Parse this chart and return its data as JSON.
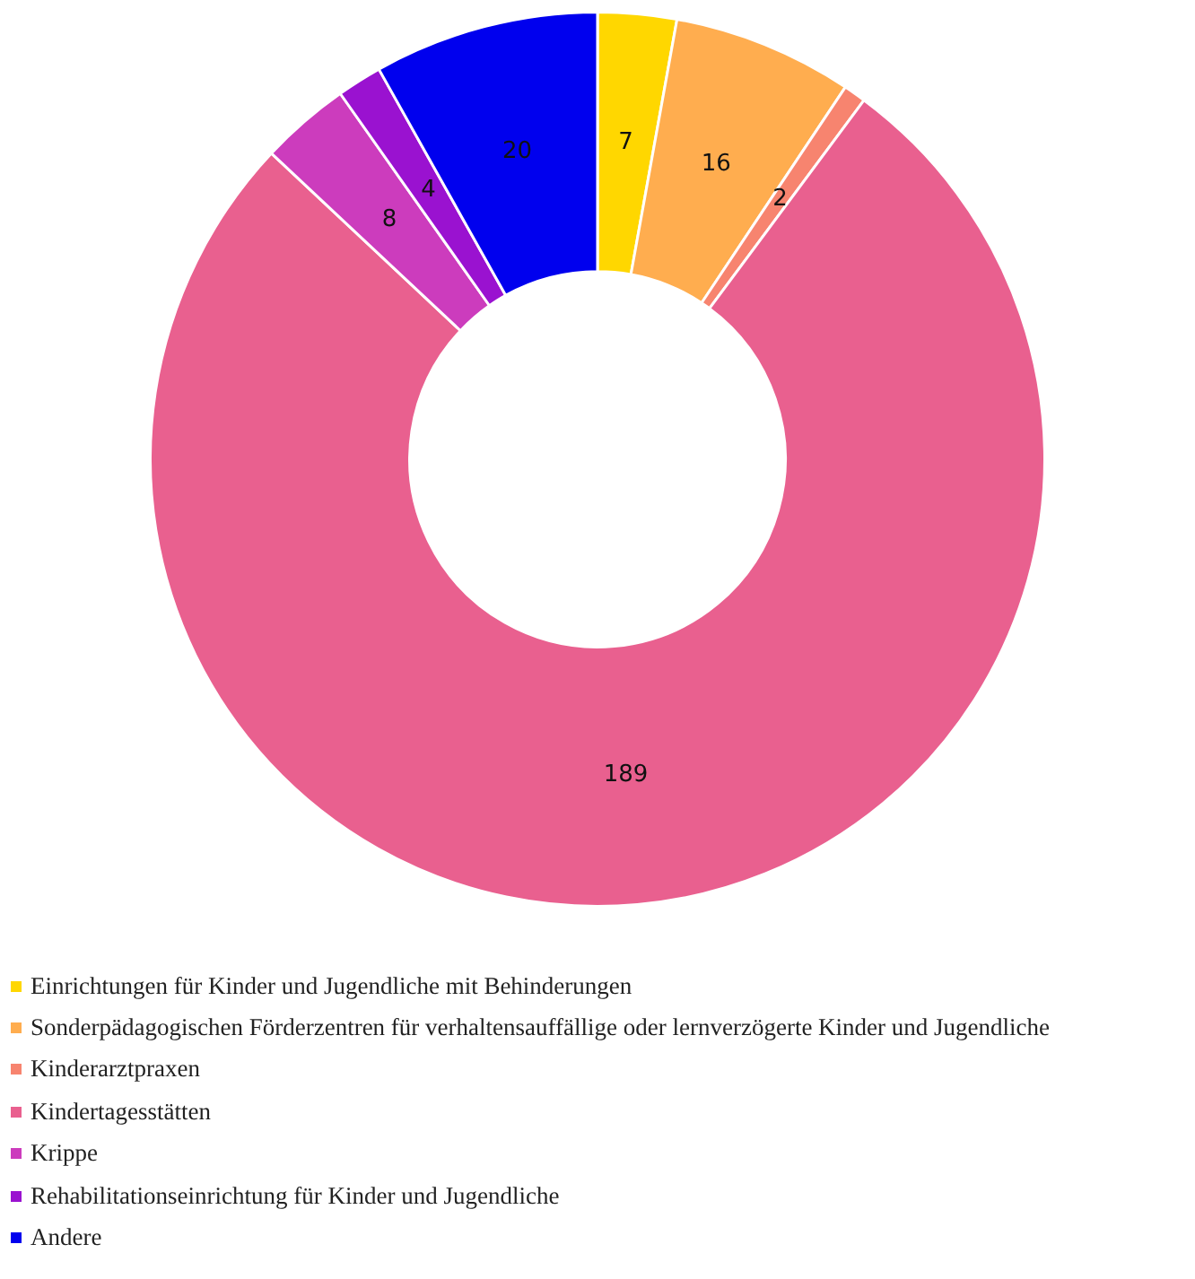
{
  "chart_data": {
    "type": "donut",
    "categories": [
      "Einrichtungen für Kinder und Jugendliche mit Behinderungen",
      "Sonderpädagogischen Förderzentren für verhaltensauffällige oder lernverzögerte Kinder und Jugendliche",
      "Kinderarztpraxen",
      "Kindertagesstätten",
      "Krippe",
      "Rehabilitationseinrichtung für Kinder und Jugendliche",
      "Andere"
    ],
    "values": [
      7,
      16,
      2,
      189,
      8,
      4,
      20
    ],
    "colors": [
      "#ffd700",
      "#ffad4f",
      "#f7846f",
      "#e9608f",
      "#cc3cbd",
      "#9a12d0",
      "#0000ee"
    ],
    "data_labels": true,
    "legend": "bottom left"
  }
}
